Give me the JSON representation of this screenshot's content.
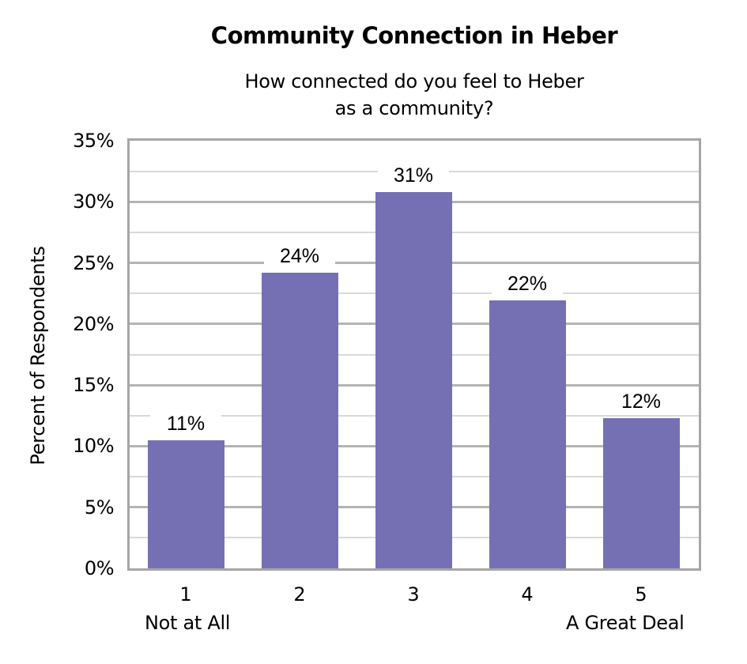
{
  "chart_data": {
    "type": "bar",
    "title": "Community Connection in Heber",
    "subtitle_line1": "How connected do you feel to Heber",
    "subtitle_line2": "as a community?",
    "xlabel": "",
    "ylabel": "Percent of Respondents",
    "categories": [
      "1",
      "2",
      "3",
      "4",
      "5"
    ],
    "category_sublabels": {
      "first": "Not at All",
      "last": "A Great Deal"
    },
    "values": [
      10.5,
      24.2,
      30.8,
      21.9,
      12.3
    ],
    "data_labels": [
      "11%",
      "24%",
      "31%",
      "22%",
      "12%"
    ],
    "ylim": [
      0,
      35
    ],
    "yticks": [
      "0%",
      "5%",
      "10%",
      "15%",
      "20%",
      "25%",
      "30%",
      "35%"
    ],
    "grid": true,
    "bar_color": "#7570b3",
    "legend": null
  }
}
